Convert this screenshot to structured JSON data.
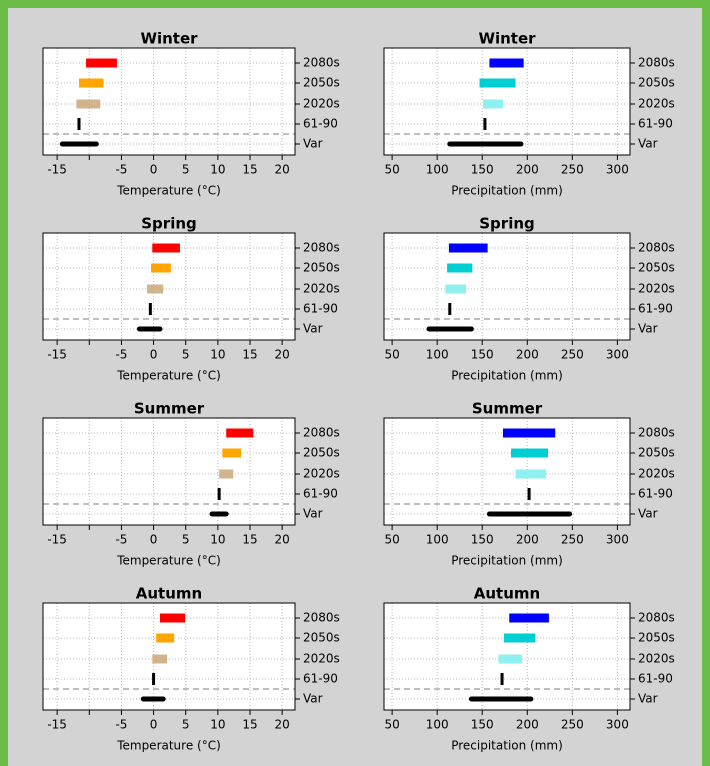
{
  "chart_data": [
    {
      "type": "range-bar",
      "title": "Winter",
      "x_label": "Temperature (°C)",
      "categories": [
        "2080s",
        "2050s",
        "2020s",
        "61-90",
        "Var"
      ],
      "low": [
        -10.5,
        -11.6,
        -12.0,
        -11.6,
        -14.2
      ],
      "high": [
        -5.7,
        -7.8,
        -8.3,
        null,
        -8.9
      ],
      "colors": [
        "#ff0000",
        "#ffa500",
        "#d2b48c",
        "#000000",
        "#000000"
      ],
      "xlim": [
        -17.2,
        22.0
      ],
      "xticks": [
        -15,
        {
          "value": -10,
          "label": null
        },
        -5,
        0,
        5,
        10,
        15,
        20
      ],
      "grid": true
    },
    {
      "type": "range-bar",
      "title": "Winter",
      "x_label": "Precipitation (mm)",
      "categories": [
        "2080s",
        "2050s",
        "2020s",
        "61-90",
        "Var"
      ],
      "low": [
        158,
        147,
        151,
        153,
        114
      ],
      "high": [
        196,
        187,
        173,
        null,
        193
      ],
      "colors": [
        "#0000ff",
        "#00ced1",
        "#8ef0f0",
        "#000000",
        "#000000"
      ],
      "xlim": [
        41,
        314
      ],
      "xticks": [
        50,
        100,
        150,
        200,
        250,
        300
      ],
      "grid": true
    },
    {
      "type": "range-bar",
      "title": "Spring",
      "x_label": "Temperature (°C)",
      "categories": [
        "2080s",
        "2050s",
        "2020s",
        "61-90",
        "Var"
      ],
      "low": [
        -0.2,
        -0.4,
        -1.0,
        -0.5,
        -2.2
      ],
      "high": [
        4.1,
        2.7,
        1.5,
        null,
        1.0
      ],
      "colors": [
        "#ff0000",
        "#ffa500",
        "#d2b48c",
        "#000000",
        "#000000"
      ],
      "xlim": [
        -17.2,
        22.0
      ],
      "xticks": [
        -15,
        {
          "value": -10,
          "label": null
        },
        -5,
        0,
        5,
        10,
        15,
        20
      ],
      "grid": true
    },
    {
      "type": "range-bar",
      "title": "Spring",
      "x_label": "Precipitation (mm)",
      "categories": [
        "2080s",
        "2050s",
        "2020s",
        "61-90",
        "Var"
      ],
      "low": [
        113,
        111,
        109,
        114,
        91
      ],
      "high": [
        156,
        139,
        132,
        null,
        138
      ],
      "colors": [
        "#0000ff",
        "#00ced1",
        "#8ef0f0",
        "#000000",
        "#000000"
      ],
      "xlim": [
        41,
        314
      ],
      "xticks": [
        50,
        100,
        150,
        200,
        250,
        300
      ],
      "grid": true
    },
    {
      "type": "range-bar",
      "title": "Summer",
      "x_label": "Temperature (°C)",
      "categories": [
        "2080s",
        "2050s",
        "2020s",
        "61-90",
        "Var"
      ],
      "low": [
        11.3,
        10.7,
        10.2,
        10.2,
        9.1
      ],
      "high": [
        15.5,
        13.6,
        12.4,
        null,
        11.3
      ],
      "colors": [
        "#ff0000",
        "#ffa500",
        "#d2b48c",
        "#000000",
        "#000000"
      ],
      "xlim": [
        -17.2,
        22.0
      ],
      "xticks": [
        -15,
        {
          "value": -10,
          "label": null
        },
        -5,
        0,
        5,
        10,
        15,
        20
      ],
      "grid": true
    },
    {
      "type": "range-bar",
      "title": "Summer",
      "x_label": "Precipitation (mm)",
      "categories": [
        "2080s",
        "2050s",
        "2020s",
        "61-90",
        "Var"
      ],
      "low": [
        173,
        182,
        187,
        202,
        158
      ],
      "high": [
        231,
        223,
        221,
        null,
        247
      ],
      "colors": [
        "#0000ff",
        "#00ced1",
        "#8ef0f0",
        "#000000",
        "#000000"
      ],
      "xlim": [
        41,
        314
      ],
      "xticks": [
        50,
        100,
        150,
        200,
        250,
        300
      ],
      "grid": true
    },
    {
      "type": "range-bar",
      "title": "Autumn",
      "x_label": "Temperature (°C)",
      "categories": [
        "2080s",
        "2050s",
        "2020s",
        "61-90",
        "Var"
      ],
      "low": [
        1.0,
        0.4,
        -0.2,
        0.0,
        -1.6
      ],
      "high": [
        4.9,
        3.2,
        2.1,
        null,
        1.5
      ],
      "colors": [
        "#ff0000",
        "#ffa500",
        "#d2b48c",
        "#000000",
        "#000000"
      ],
      "xlim": [
        -17.2,
        22.0
      ],
      "xticks": [
        -15,
        {
          "value": -10,
          "label": null
        },
        -5,
        0,
        5,
        10,
        15,
        20
      ],
      "grid": true
    },
    {
      "type": "range-bar",
      "title": "Autumn",
      "x_label": "Precipitation (mm)",
      "categories": [
        "2080s",
        "2050s",
        "2020s",
        "61-90",
        "Var"
      ],
      "low": [
        180,
        174,
        168,
        172,
        138
      ],
      "high": [
        224,
        209,
        194,
        null,
        204
      ],
      "colors": [
        "#0000ff",
        "#00ced1",
        "#8ef0f0",
        "#000000",
        "#000000"
      ],
      "xlim": [
        41,
        314
      ],
      "xticks": [
        50,
        100,
        150,
        200,
        250,
        300
      ],
      "grid": true
    }
  ]
}
